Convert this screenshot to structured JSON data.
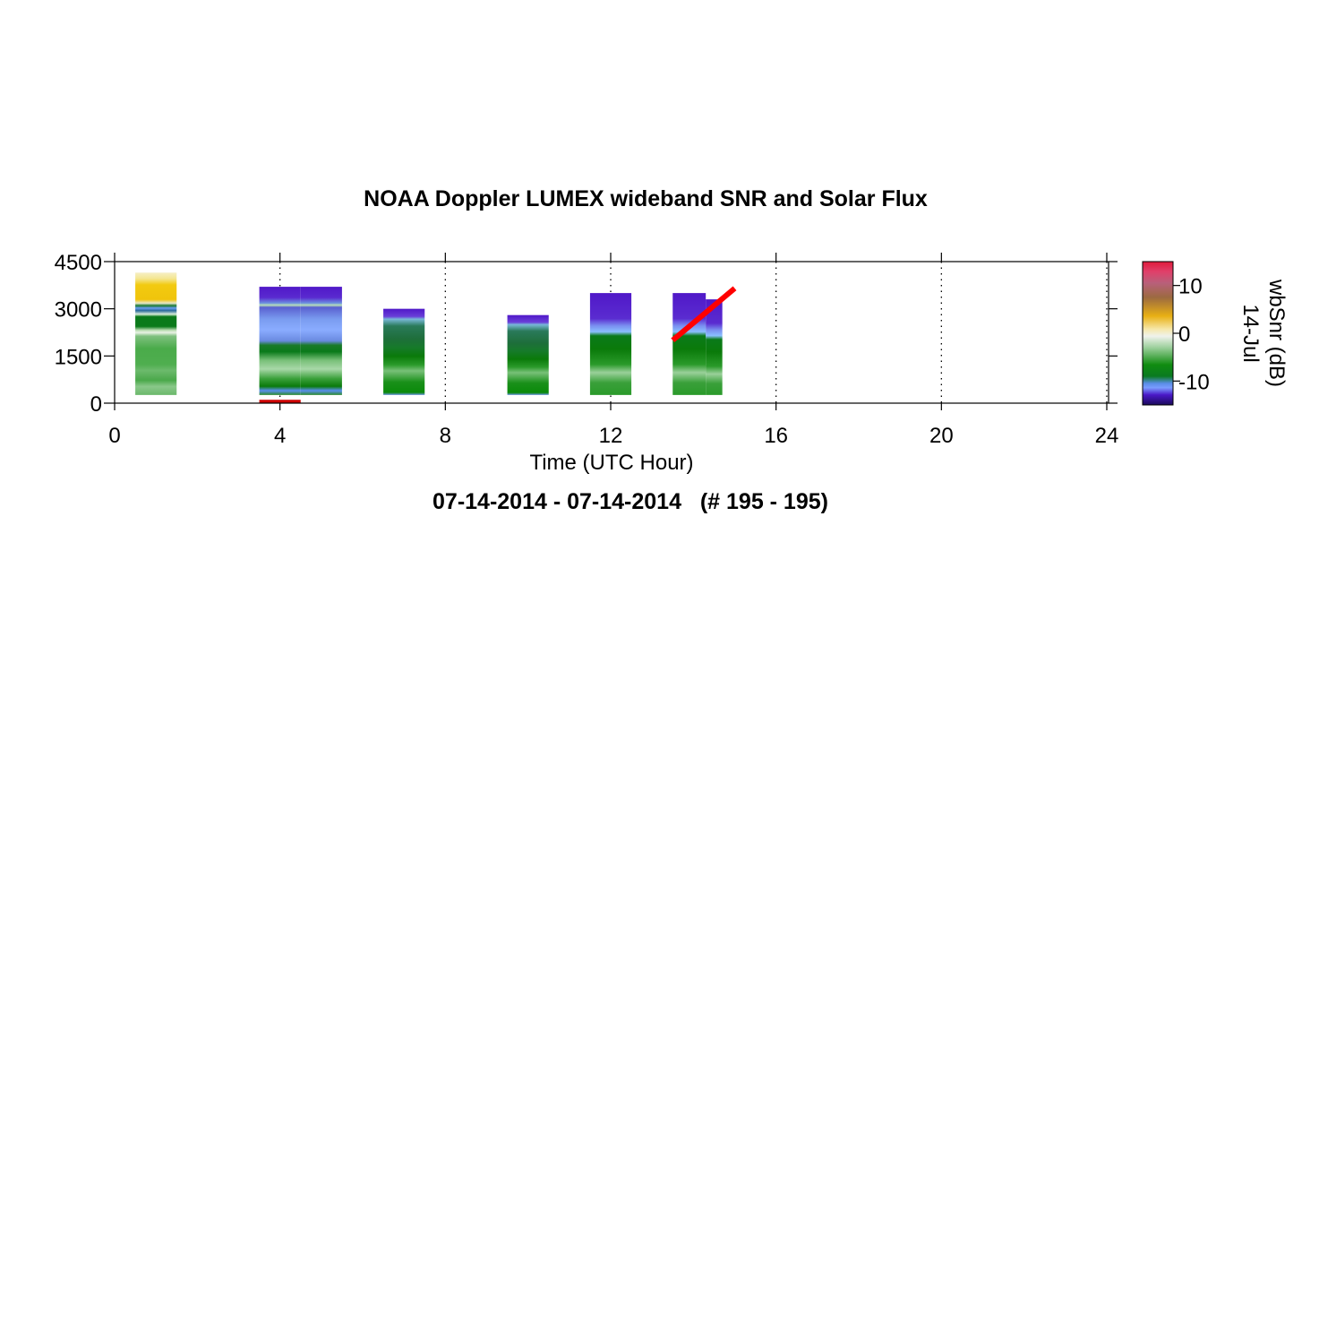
{
  "chart_data": {
    "type": "heatmap",
    "title": "NOAA Doppler LUMEX wideband SNR and Solar Flux",
    "subtitle": "07-14-2014 - 07-14-2014   (# 195 - 195)",
    "xlabel": "Time (UTC Hour)",
    "xlim": [
      0,
      24
    ],
    "x_ticks": [
      "0",
      "4",
      "8",
      "12",
      "16",
      "20",
      "24"
    ],
    "ylim": [
      0,
      4500
    ],
    "y_ticks": [
      "0",
      "1500",
      "3000",
      "4500"
    ],
    "grid": "vertical dotted",
    "colorbar": {
      "label": "wbSnr (dB)",
      "sublabel": "14-Jul",
      "range": [
        -15,
        15
      ],
      "ticks": [
        "10",
        "0",
        "-10"
      ]
    },
    "snr_blocks": [
      {
        "x_start": 0.5,
        "x_end": 1.5,
        "y_top": 4150,
        "profile": "warm"
      },
      {
        "x_start": 3.5,
        "x_end": 4.5,
        "y_top": 3700,
        "profile": "cold"
      },
      {
        "x_start": 4.5,
        "x_end": 5.5,
        "y_top": 3700,
        "profile": "cold"
      },
      {
        "x_start": 6.5,
        "x_end": 7.5,
        "y_top": 3000,
        "profile": "mid"
      },
      {
        "x_start": 9.5,
        "x_end": 10.5,
        "y_top": 2800,
        "profile": "mid"
      },
      {
        "x_start": 11.5,
        "x_end": 12.5,
        "y_top": 3500,
        "profile": "cold2"
      },
      {
        "x_start": 13.5,
        "x_end": 14.3,
        "y_top": 3500,
        "profile": "cold2"
      },
      {
        "x_start": 14.3,
        "x_end": 14.7,
        "y_top": 3300,
        "profile": "cold2"
      }
    ],
    "solar_flux": [
      {
        "x": [
          3.5,
          4.5
        ],
        "y": [
          50,
          50
        ],
        "color": "#cc0000"
      },
      {
        "x": [
          13.5,
          15.0
        ],
        "y": [
          2000,
          3650
        ],
        "color": "#ff0000"
      }
    ]
  }
}
